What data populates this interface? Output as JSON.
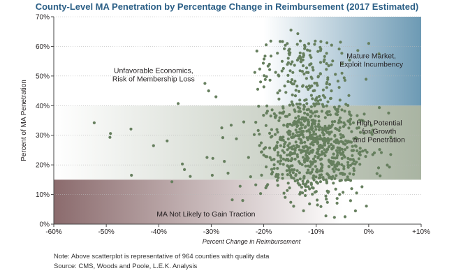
{
  "chart_data": {
    "type": "scatter",
    "title": "County-Level MA Penetration by Percentage Change in Reimbursement (2017 Estimated)",
    "xlabel": "Percent Change in Reimbursement",
    "ylabel": "Percent of MA Penetration",
    "xlim": [
      -60,
      10
    ],
    "ylim": [
      0,
      70
    ],
    "x_ticks": [
      -60,
      -50,
      -40,
      -30,
      -20,
      -10,
      0,
      10
    ],
    "x_tick_labels": [
      "-60%",
      "-50%",
      "-40%",
      "-30%",
      "-20%",
      "-10%",
      "0%",
      "+10%"
    ],
    "y_ticks": [
      0,
      10,
      20,
      30,
      40,
      50,
      60,
      70
    ],
    "y_tick_labels": [
      "0%",
      "10%",
      "20%",
      "30%",
      "40%",
      "50%",
      "60%",
      "70%"
    ],
    "point_color": "#667f5e",
    "point_count": 964,
    "bands": [
      {
        "name": "mature-market",
        "x_range": [
          -20,
          10
        ],
        "y_range": [
          40,
          70
        ],
        "color_start": "#ffffff",
        "color_end": "#6d9ab4"
      },
      {
        "name": "high-potential",
        "x_range": [
          -60,
          10
        ],
        "y_range": [
          15,
          40
        ],
        "color_start": "#ffffff",
        "color_end": "#a9b4a2"
      },
      {
        "name": "not-likely",
        "x_range": [
          -60,
          -5
        ],
        "y_range": [
          0,
          15
        ],
        "color_start": "#8b6b6d",
        "color_end": "#ffffff"
      }
    ],
    "annotations": [
      {
        "name": "annotation-unfavorable",
        "lines": [
          "Unfavorable Economics,",
          "Risk of Membership Loss"
        ],
        "x": -41,
        "y": 50.5
      },
      {
        "name": "annotation-mature",
        "lines": [
          "Mature Market,",
          "Exploit Incumbency"
        ],
        "x": 0.5,
        "y": 55.5
      },
      {
        "name": "annotation-high-potential",
        "lines": [
          "High Potential",
          "for Growth",
          "and Penetration"
        ],
        "x": 2,
        "y": 31.5
      },
      {
        "name": "annotation-not-likely",
        "lines": [
          "MA Not Likely to Gain Traction"
        ],
        "x": -31,
        "y": 3.5
      }
    ],
    "outliers": [
      [
        -52.3,
        34.2
      ],
      [
        -49.2,
        30.6
      ],
      [
        -49.3,
        29.3
      ],
      [
        -45.3,
        32.1
      ],
      [
        -45.2,
        16.5
      ],
      [
        -41.0,
        26.5
      ],
      [
        -38.4,
        28.1
      ],
      [
        -37.5,
        14.3
      ],
      [
        -36.3,
        40.7
      ],
      [
        -35.5,
        20.3
      ],
      [
        -35.1,
        18.4
      ],
      [
        -34.0,
        16.1
      ],
      [
        -31.2,
        47.5
      ],
      [
        -30.5,
        45.0
      ],
      [
        -30.8,
        22.5
      ],
      [
        -29.1,
        43.0
      ],
      [
        -29.7,
        22.2
      ],
      [
        -29.8,
        16.5
      ],
      [
        -28.0,
        32.5
      ],
      [
        -27.8,
        29.2
      ],
      [
        -27.5,
        21.2
      ],
      [
        -26.8,
        17.2
      ],
      [
        -26.2,
        33.4
      ],
      [
        -26.0,
        8.2
      ],
      [
        -25.2,
        28.8
      ],
      [
        -24.5,
        12.8
      ],
      [
        -24.0,
        8.0
      ],
      [
        -23.8,
        34.5
      ],
      [
        -22.9,
        22.5
      ],
      [
        -22.5,
        16.0
      ],
      [
        -14.8,
        65.5
      ],
      [
        -13.5,
        64.3
      ],
      [
        -2.3,
        10.5
      ],
      [
        0.0,
        61.0
      ],
      [
        3.8,
        37.5
      ],
      [
        4.2,
        23.5
      ],
      [
        -4.5,
        2.5
      ],
      [
        -7.5,
        38.0
      ]
    ]
  },
  "note": "Note: Above scatterplot is representative of 964 counties with quality data",
  "source": "Source: CMS, Woods and Poole, L.E.K. Analysis"
}
